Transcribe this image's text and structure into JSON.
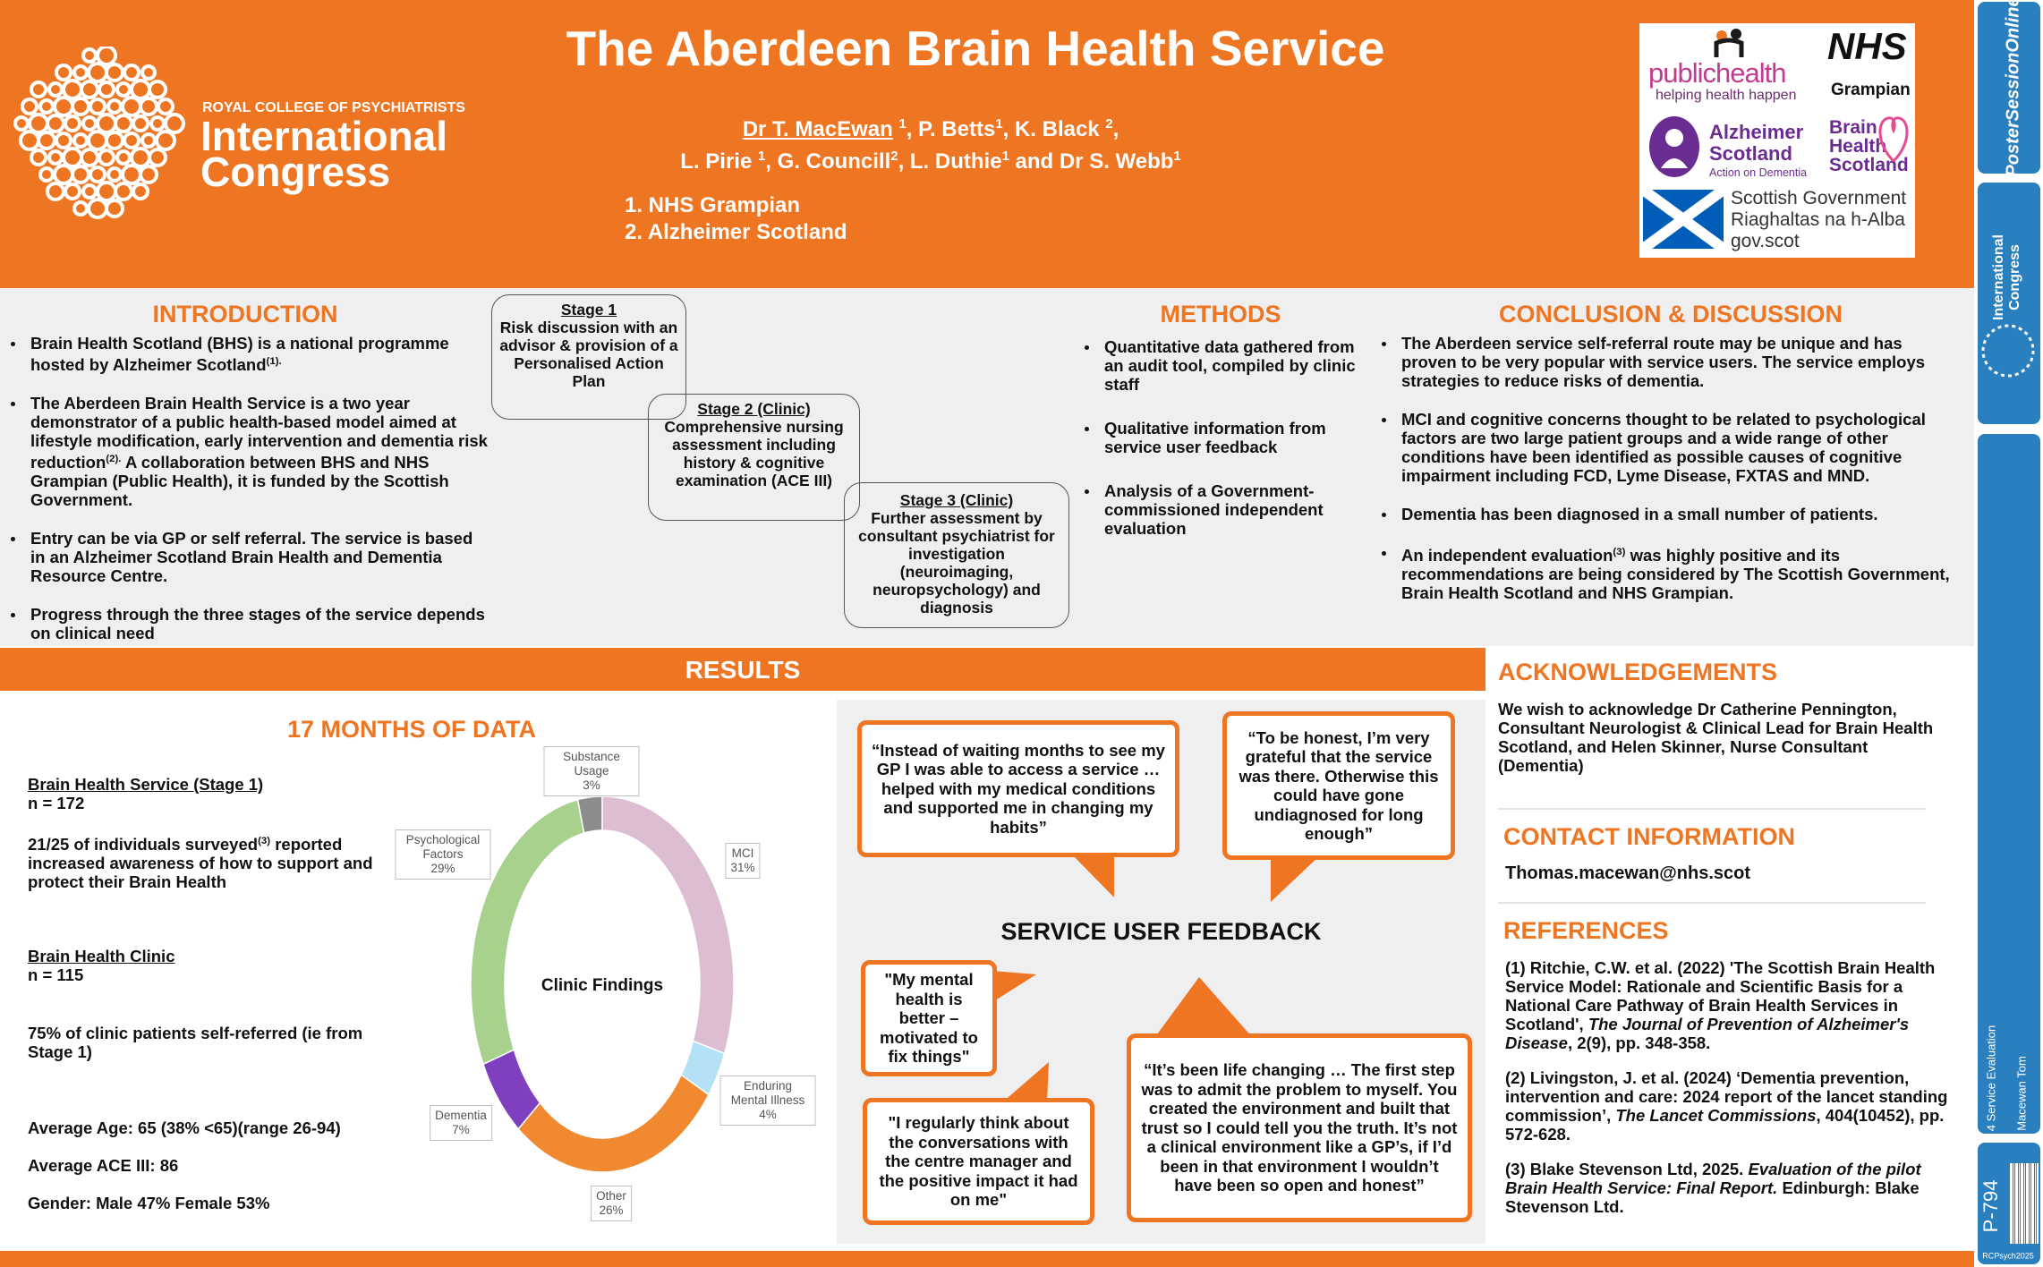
{
  "header": {
    "title": "The Aberdeen Brain Health Service",
    "authors": [
      [
        {
          "u": "Dr T. MacEwan"
        },
        " ",
        {
          "sup": "1"
        },
        ", P. Betts",
        {
          "sup": "1"
        },
        ", K. Black ",
        {
          "sup": "2"
        },
        ","
      ],
      [
        "L. Pirie ",
        {
          "sup": "1"
        },
        ", G. Councill",
        {
          "sup": "2"
        },
        ", L. Duthie",
        {
          "sup": "1"
        },
        " and Dr S. Webb",
        {
          "sup": "1"
        }
      ]
    ],
    "affiliations": [
      "1. NHS Grampian",
      "2. Alzheimer Scotland"
    ],
    "congress": {
      "org": "ROYAL COLLEGE OF PSYCHIATRISTS",
      "name": [
        "International",
        "Congress"
      ]
    },
    "partner_logos": {
      "public_health": {
        "name": "publichealth",
        "tagline": "helping health happen"
      },
      "nhs": {
        "name": "NHS",
        "region": "Grampian"
      },
      "alzheimer": {
        "name": [
          "Alzheimer",
          "Scotland"
        ],
        "tagline": "Action on Dementia"
      },
      "brain_health": [
        "Brain",
        "Health",
        "Scotland"
      ],
      "government": [
        "Scottish Government",
        "Riaghaltas na h-Alba",
        "gov.scot"
      ]
    }
  },
  "introduction": {
    "heading": "INTRODUCTION",
    "bullets": [
      [
        "Brain Health Scotland (BHS) is a national programme hosted by Alzheimer Scotland",
        {
          "sup": "(1)."
        }
      ],
      [
        "The Aberdeen Brain Health Service is a two year demonstrator of a public health-based model aimed at lifestyle modification, early intervention and dementia risk reduction",
        {
          "sup": "(2)."
        },
        "  A collaboration between BHS and NHS Grampian (Public Health), it is funded by the Scottish Government."
      ],
      "Entry can be via GP or self referral. The service is based in an Alzheimer Scotland Brain Health and Dementia Resource Centre.",
      "Progress through the three stages of the service depends on clinical need"
    ]
  },
  "stages": [
    {
      "title": "Stage 1",
      "text": "Risk discussion with an advisor & provision of a Personalised Action Plan"
    },
    {
      "title": "Stage 2 (Clinic)",
      "text": "Comprehensive nursing assessment including history & cognitive examination (ACE III)"
    },
    {
      "title": "Stage 3 (Clinic)",
      "text": "Further assessment by consultant psychiatrist for investigation (neuroimaging, neuropsychology) and diagnosis"
    }
  ],
  "methods": {
    "heading": "METHODS",
    "bullets": [
      "Quantitative data gathered from an audit tool, compiled by clinic staff",
      "Qualitative information from service user feedback",
      "Analysis of a Government-commissioned independent evaluation"
    ]
  },
  "conclusion": {
    "heading": "CONCLUSION & DISCUSSION",
    "bullets": [
      "The Aberdeen service self-referral route may be unique and has proven to be very popular with service users. The service employs strategies to reduce risks of dementia.",
      "MCI and cognitive concerns thought to be related to psychological factors are two large patient groups and a wide range of other conditions have been identified as possible causes of cognitive impairment including FCD, Lyme Disease, FXTAS and MND.",
      "Dementia has been diagnosed in a small number of patients.",
      [
        "An independent evaluation",
        {
          "sup": "(3)"
        },
        " was highly positive and its recommendations are being considered by The Scottish Government, Brain Health Scotland and NHS Grampian."
      ]
    ]
  },
  "results": {
    "heading": "RESULTS",
    "subheading": "17 MONTHS OF DATA",
    "blocks": [
      [
        [
          {
            "u": "Brain Health Service (Stage 1)"
          }
        ],
        "n = 172"
      ],
      [
        [
          "21/25 of individuals surveyed",
          {
            "sup": "(3)"
          },
          " reported increased awareness of how to support and protect their Brain Health"
        ]
      ],
      [
        [
          {
            "u": "Brain Health Clinic"
          }
        ],
        "n = 115"
      ],
      [
        "75% of clinic patients self-referred (ie from Stage 1)"
      ],
      [
        "Average Age: 65 (38% <65)(range 26-94)"
      ],
      [
        "Average ACE III: 86"
      ],
      [
        "Gender: Male 47% Female 53%"
      ]
    ],
    "donut": {
      "center_label": "Clinic Findings",
      "categories": [
        "MCI",
        "Enduring Mental Illness",
        "Other",
        "Dementia",
        "Psychological Factors",
        "Substance Usage"
      ],
      "values": [
        31,
        4,
        26,
        7,
        29,
        3
      ],
      "value_labels": [
        "31%",
        "4%",
        "26%",
        "7%",
        "29%",
        "3%"
      ],
      "colors": [
        "#dcbdd2",
        "#b5e1f6",
        "#f0892f",
        "#7f3fbf",
        "#a9d18e",
        "#8c8c8c"
      ]
    }
  },
  "feedback": {
    "heading": "SERVICE USER FEEDBACK",
    "quotes": [
      "“Instead of waiting months to see my GP I was able to access a service … helped with my medical conditions and supported me in changing my habits”",
      "“To be honest, I’m very grateful that the service was there. Otherwise this could have gone undiagnosed for long enough”",
      "\"My mental health is better – motivated to fix things\"",
      "\"I regularly think about the conversations with the centre manager and the positive impact it had on me\"",
      "“It’s been life changing … The first step was to admit the problem to myself. You created the environment and built that trust so I could tell you the truth. It’s not a clinical environment like a GP’s, if I’d been in that environment I wouldn’t have been so open and honest”"
    ]
  },
  "acknowledgements": {
    "heading": "ACKNOWLEDGEMENTS",
    "text": "We wish to acknowledge Dr Catherine Pennington, Consultant Neurologist & Clinical Lead for Brain Health Scotland, and Helen Skinner, Nurse Consultant (Dementia)"
  },
  "contact": {
    "heading": "CONTACT INFORMATION",
    "email": "Thomas.macewan@nhs.scot"
  },
  "references": {
    "heading": "REFERENCES",
    "items": [
      [
        "(1) Ritchie, C.W. et al. (2022) 'The Scottish Brain Health Service Model: Rationale and Scientific Basis for a National Care Pathway of Brain Health Services in Scotland', ",
        {
          "i": "The Journal of Prevention of Alzheimer's Disease"
        },
        ",  2(9), pp. 348-358."
      ],
      [
        "(2) Livingston, J. et al. (2024) ‘Dementia prevention, intervention and care: 2024 report of the lancet standing commission’, ",
        {
          "i": "The Lancet Commissions"
        },
        ", 404(10452), pp. 572-628."
      ],
      [
        "(3) Blake Stevenson Ltd, 2025. ",
        {
          "i": "Evaluation of the pilot Brain Health Service: Final Report."
        },
        " Edinburgh: Blake Stevenson Ltd."
      ]
    ]
  },
  "sidebar": {
    "brand": "PosterSessionOnline",
    "congress": [
      "International",
      "Congress"
    ],
    "category": "4 Service Evaluation",
    "author": "Macewan Tom",
    "poster_id": "P-794",
    "event": "RCPsych2025"
  }
}
